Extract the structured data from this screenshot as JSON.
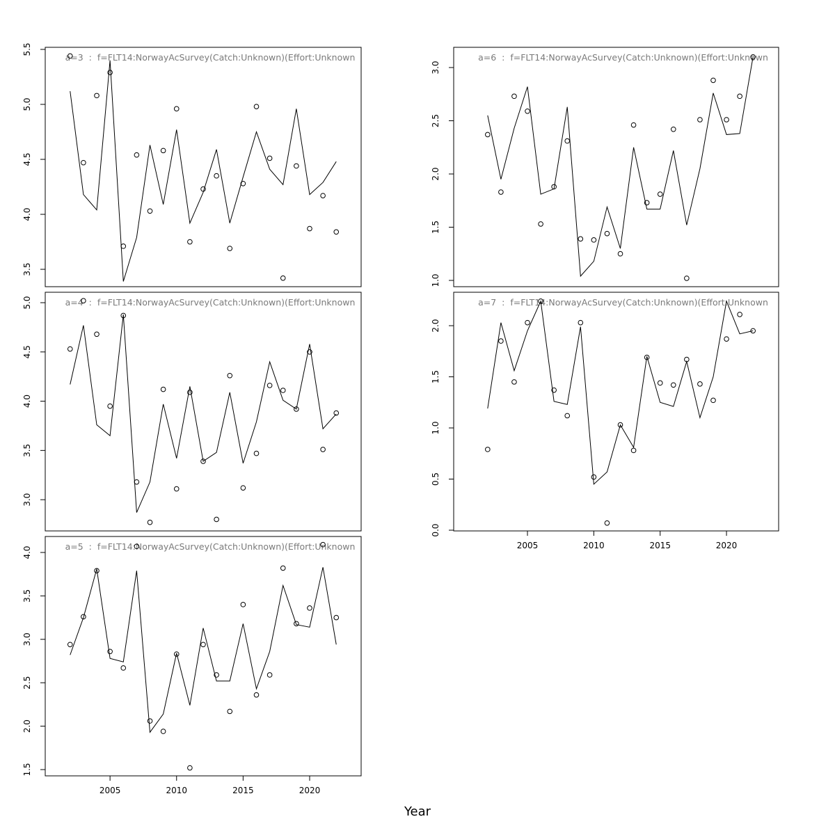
{
  "x_label": "Year",
  "chart_data": [
    {
      "type": "line",
      "title": "a=3  :  f=FLT14:NorwayAcSurvey(Catch:Unknown)(Effort:Unknown",
      "x": [
        2002,
        2003,
        2004,
        2005,
        2006,
        2007,
        2008,
        2009,
        2010,
        2011,
        2012,
        2013,
        2014,
        2015,
        2016,
        2017,
        2018,
        2019,
        2020,
        2021,
        2022
      ],
      "xlim": [
        2000.13,
        2023.87
      ],
      "ylim": [
        3.342,
        5.519
      ],
      "yticks": [
        {
          "value": 3.5,
          "label": "3.5"
        },
        {
          "value": 4,
          "label": "4.0"
        },
        {
          "value": 4.5,
          "label": "4.5"
        },
        {
          "value": 5,
          "label": "5.0"
        },
        {
          "value": 5.5,
          "label": "5.5"
        }
      ],
      "series": [
        {
          "style": "points",
          "color": "#000000",
          "values": [
            5.44,
            4.47,
            5.08,
            5.29,
            3.71,
            4.54,
            4.03,
            4.58,
            4.96,
            3.75,
            4.23,
            4.35,
            3.69,
            4.28,
            4.98,
            4.51,
            3.42,
            4.44,
            3.87,
            4.17,
            3.84
          ]
        },
        {
          "style": "line",
          "color": "#000000",
          "values": [
            5.12,
            4.18,
            4.04,
            5.4,
            3.39,
            3.79,
            4.63,
            4.09,
            4.77,
            3.92,
            4.2,
            4.59,
            3.92,
            4.34,
            4.75,
            4.41,
            4.27,
            4.96,
            4.18,
            4.29,
            4.48
          ]
        }
      ]
    },
    {
      "type": "line",
      "title": "a=4  :  f=FLT14:NorwayAcSurvey(Catch:Unknown)(Effort:Unknown",
      "x": [
        2002,
        2003,
        2004,
        2005,
        2006,
        2007,
        2008,
        2009,
        2010,
        2011,
        2012,
        2013,
        2014,
        2015,
        2016,
        2017,
        2018,
        2019,
        2020,
        2021,
        2022
      ],
      "xlim": [
        2000.13,
        2023.87
      ],
      "ylim": [
        2.683,
        5.106
      ],
      "yticks": [
        {
          "value": 3,
          "label": "3.0"
        },
        {
          "value": 3.5,
          "label": "3.5"
        },
        {
          "value": 4,
          "label": "4.0"
        },
        {
          "value": 4.5,
          "label": "4.5"
        },
        {
          "value": 5,
          "label": "5.0"
        }
      ],
      "series": [
        {
          "style": "points",
          "color": "#000000",
          "values": [
            4.53,
            5.02,
            4.68,
            3.95,
            4.87,
            3.18,
            2.77,
            4.12,
            3.11,
            4.09,
            3.39,
            2.8,
            4.26,
            3.12,
            3.47,
            4.16,
            4.11,
            3.92,
            4.5,
            3.51,
            3.88
          ]
        },
        {
          "style": "line",
          "color": "#000000",
          "values": [
            4.17,
            4.77,
            3.76,
            3.65,
            4.88,
            2.87,
            3.18,
            3.97,
            3.42,
            4.15,
            3.39,
            3.48,
            4.09,
            3.37,
            3.79,
            4.4,
            4.01,
            3.92,
            4.58,
            3.72,
            3.87
          ]
        }
      ]
    },
    {
      "type": "line",
      "title": "a=5  :  f=FLT14:NorwayAcSurvey(Catch:Unknown)(Effort:Unknown",
      "x": [
        2002,
        2003,
        2004,
        2005,
        2006,
        2007,
        2008,
        2009,
        2010,
        2011,
        2012,
        2013,
        2014,
        2015,
        2016,
        2017,
        2018,
        2019,
        2020,
        2021,
        2022
      ],
      "xlim": [
        2000.13,
        2023.87
      ],
      "xticks": [
        2005,
        2010,
        2015,
        2020
      ],
      "ylim": [
        1.428,
        4.184
      ],
      "yticks": [
        {
          "value": 1.5,
          "label": "1.5"
        },
        {
          "value": 2,
          "label": "2.0"
        },
        {
          "value": 2.5,
          "label": "2.5"
        },
        {
          "value": 3,
          "label": "3.0"
        },
        {
          "value": 3.5,
          "label": "3.5"
        },
        {
          "value": 4,
          "label": "4.0"
        }
      ],
      "series": [
        {
          "style": "points",
          "color": "#000000",
          "values": [
            2.94,
            3.26,
            3.79,
            2.86,
            2.67,
            4.07,
            2.06,
            1.94,
            2.83,
            1.52,
            2.94,
            2.59,
            2.17,
            3.4,
            2.36,
            2.59,
            3.82,
            3.18,
            3.36,
            4.09,
            3.25
          ]
        },
        {
          "style": "line",
          "color": "#000000",
          "values": [
            2.82,
            3.25,
            3.81,
            2.78,
            2.74,
            3.79,
            1.93,
            2.14,
            2.84,
            2.24,
            3.13,
            2.52,
            2.52,
            3.18,
            2.43,
            2.86,
            3.62,
            3.17,
            3.14,
            3.83,
            2.94
          ]
        }
      ]
    },
    {
      "type": "line",
      "title": "a=6  :  f=FLT14:NorwayAcSurvey(Catch:Unknown)(Effort:Unknown",
      "x": [
        2002,
        2003,
        2004,
        2005,
        2006,
        2007,
        2008,
        2009,
        2010,
        2011,
        2012,
        2013,
        2014,
        2015,
        2016,
        2017,
        2018,
        2019,
        2020,
        2021,
        2022
      ],
      "xlim": [
        1999.44,
        2023.93
      ],
      "ylim": [
        0.941,
        3.19
      ],
      "yticks": [
        {
          "value": 1,
          "label": "1.0"
        },
        {
          "value": 1.5,
          "label": "1.5"
        },
        {
          "value": 2,
          "label": "2.0"
        },
        {
          "value": 2.5,
          "label": "2.5"
        },
        {
          "value": 3,
          "label": "3.0"
        }
      ],
      "series": [
        {
          "style": "points",
          "color": "#000000",
          "values": [
            2.37,
            1.83,
            2.73,
            2.59,
            1.53,
            1.88,
            2.31,
            1.39,
            1.38,
            1.44,
            1.25,
            2.46,
            1.73,
            1.81,
            2.42,
            1.02,
            2.51,
            2.88,
            2.51,
            2.73,
            3.1
          ]
        },
        {
          "style": "line",
          "color": "#000000",
          "values": [
            2.55,
            1.95,
            2.43,
            2.82,
            1.81,
            1.86,
            2.63,
            1.04,
            1.18,
            1.69,
            1.3,
            2.25,
            1.67,
            1.67,
            2.22,
            1.52,
            2.05,
            2.76,
            2.37,
            2.38,
            3.1
          ]
        }
      ]
    },
    {
      "type": "line",
      "title": "a=7  :  f=FLT14:NorwayAcSurvey(Catch:Unknown)(Effort:Unknown",
      "x": [
        2002,
        2003,
        2004,
        2005,
        2006,
        2007,
        2008,
        2009,
        2010,
        2011,
        2012,
        2013,
        2014,
        2015,
        2016,
        2017,
        2018,
        2019,
        2020,
        2021,
        2022
      ],
      "xlim": [
        1999.44,
        2023.93
      ],
      "xticks": [
        2005,
        2010,
        2015,
        2020
      ],
      "ylim": [
        -0.007,
        2.327
      ],
      "yticks": [
        {
          "value": 0,
          "label": "0.0"
        },
        {
          "value": 0.5,
          "label": "0.5"
        },
        {
          "value": 1,
          "label": "1.0"
        },
        {
          "value": 1.5,
          "label": "1.5"
        },
        {
          "value": 2,
          "label": "2.0"
        }
      ],
      "series": [
        {
          "style": "points",
          "color": "#000000",
          "values": [
            0.79,
            1.85,
            1.45,
            2.03,
            2.24,
            1.37,
            1.12,
            2.03,
            0.52,
            0.07,
            1.03,
            0.78,
            1.69,
            1.44,
            1.42,
            1.67,
            1.43,
            1.27,
            1.87,
            2.11,
            1.95
          ]
        },
        {
          "style": "line",
          "color": "#000000",
          "values": [
            1.19,
            2.03,
            1.56,
            1.95,
            2.24,
            1.26,
            1.23,
            1.99,
            0.45,
            0.57,
            1.03,
            0.81,
            1.7,
            1.25,
            1.21,
            1.65,
            1.1,
            1.5,
            2.24,
            1.92,
            1.95
          ]
        }
      ]
    }
  ]
}
